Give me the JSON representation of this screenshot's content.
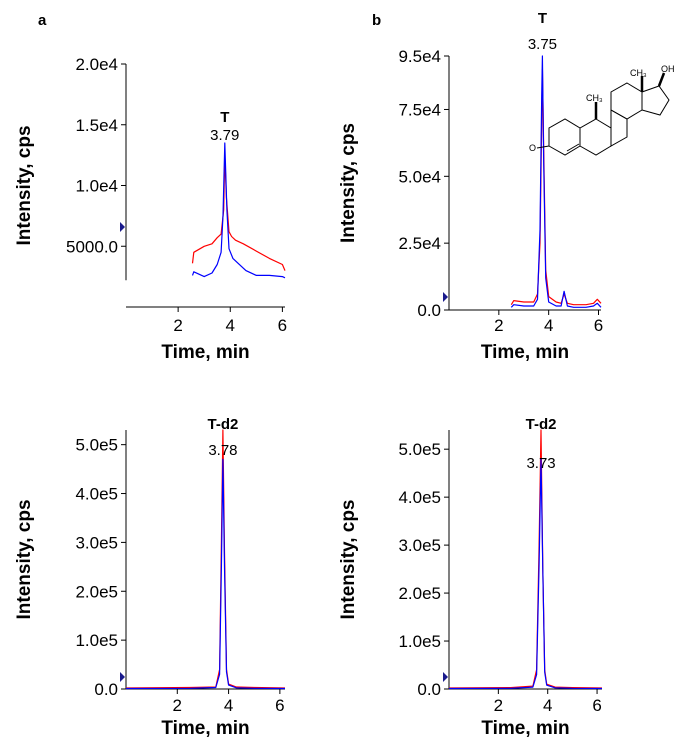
{
  "panel_letters": {
    "a": "a",
    "b": "b"
  },
  "structure": {
    "methyl_label_1": "CH₃",
    "methyl_label_2": "CH₃",
    "hydroxyl_label": "OH",
    "ketone_label": "O"
  },
  "chart_data": [
    {
      "id": "a-top",
      "type": "line",
      "panel": "a",
      "xlabel": "Time, min",
      "ylabel": "Intensity, cps",
      "xlim": [
        0,
        6.1
      ],
      "ylim": [
        0,
        20000
      ],
      "xticks": [
        2,
        4,
        6
      ],
      "xtick_labels": [
        "2",
        "4",
        "6"
      ],
      "yticks": [
        5000,
        10000,
        15000,
        20000
      ],
      "ytick_labels": [
        "5000.0",
        "1.0e4",
        "1.5e4",
        "2.0e4"
      ],
      "y_axis_start": 2200,
      "peak": {
        "name": "T",
        "rt": "3.79",
        "x": 3.79,
        "y": 13500
      },
      "colors": {
        "series1": "#ff0000",
        "series2": "#0000ff"
      },
      "series": [
        {
          "color": "#ff0000",
          "x": [
            2.55,
            2.6,
            3.0,
            3.3,
            3.5,
            3.65,
            3.75,
            3.79,
            3.85,
            3.95,
            4.05,
            4.2,
            4.5,
            5.0,
            5.5,
            6.0,
            6.1
          ],
          "y": [
            3600,
            4500,
            5000,
            5200,
            5700,
            6000,
            8000,
            12500,
            9000,
            6200,
            5800,
            5500,
            5200,
            4600,
            4000,
            3500,
            3000
          ]
        },
        {
          "color": "#0000ff",
          "x": [
            2.55,
            2.6,
            3.0,
            3.3,
            3.5,
            3.65,
            3.72,
            3.79,
            3.87,
            3.95,
            4.1,
            4.3,
            4.6,
            5.0,
            5.5,
            6.0,
            6.1
          ],
          "y": [
            2600,
            2900,
            2500,
            2800,
            3500,
            4500,
            7500,
            13500,
            8000,
            4800,
            4000,
            3600,
            3000,
            2600,
            2600,
            2500,
            2400
          ]
        }
      ]
    },
    {
      "id": "b-top",
      "type": "line",
      "panel": "b",
      "xlabel": "Time, min",
      "ylabel": "Intensity, cps",
      "xlim": [
        0,
        6.1
      ],
      "ylim": [
        0,
        95000
      ],
      "xticks": [
        2,
        4,
        6
      ],
      "xtick_labels": [
        "2",
        "4",
        "6"
      ],
      "yticks": [
        0,
        25000,
        50000,
        75000,
        95000
      ],
      "ytick_labels": [
        "0.0",
        "2.5e4",
        "5.0e4",
        "7.5e4",
        "9.5e4"
      ],
      "peak": {
        "name": "T",
        "rt": "3.75",
        "x": 3.75,
        "y": 95000
      },
      "colors": {
        "series1": "#ff0000",
        "series2": "#0000ff"
      },
      "series": [
        {
          "color": "#ff0000",
          "x": [
            2.5,
            2.6,
            3.0,
            3.4,
            3.55,
            3.65,
            3.72,
            3.75,
            3.8,
            3.88,
            4.0,
            4.3,
            4.5,
            4.62,
            4.75,
            5.0,
            5.5,
            5.8,
            5.95,
            6.1
          ],
          "y": [
            2000,
            3500,
            3000,
            3000,
            6000,
            25000,
            70000,
            90000,
            60000,
            15000,
            5000,
            3000,
            2500,
            6000,
            2500,
            2000,
            2000,
            2500,
            4000,
            2500
          ]
        },
        {
          "color": "#0000ff",
          "x": [
            2.5,
            2.6,
            3.0,
            3.4,
            3.55,
            3.65,
            3.72,
            3.75,
            3.8,
            3.88,
            4.0,
            4.3,
            4.5,
            4.62,
            4.75,
            5.0,
            5.5,
            5.8,
            5.95,
            6.1
          ],
          "y": [
            1000,
            2000,
            1500,
            1500,
            4000,
            30000,
            80000,
            95000,
            55000,
            12000,
            3000,
            1500,
            1500,
            7000,
            1500,
            1000,
            1000,
            1500,
            2500,
            1000
          ]
        }
      ]
    },
    {
      "id": "a-bottom",
      "type": "line",
      "panel": "a",
      "xlabel": "Time, min",
      "ylabel": "Intensity, cps",
      "xlim": [
        0,
        6.2
      ],
      "ylim": [
        0,
        530000
      ],
      "xticks": [
        2,
        4,
        6
      ],
      "xtick_labels": [
        "2",
        "4",
        "6"
      ],
      "yticks": [
        0,
        100000,
        200000,
        300000,
        400000,
        500000
      ],
      "ytick_labels": [
        "0.0",
        "1.0e5",
        "2.0e5",
        "3.0e5",
        "4.0e5",
        "5.0e5"
      ],
      "peak": {
        "name": "T-d2",
        "rt": "3.78",
        "x": 3.78,
        "y": 530000
      },
      "colors": {
        "series1": "#ff0000",
        "series2": "#0000ff"
      },
      "series": [
        {
          "color": "#ff0000",
          "x": [
            0.0,
            2.5,
            3.5,
            3.65,
            3.72,
            3.78,
            3.84,
            3.92,
            4.0,
            4.3,
            5.0,
            6.2
          ],
          "y": [
            2000,
            3000,
            4000,
            40000,
            300000,
            530000,
            280000,
            40000,
            10000,
            4000,
            3000,
            2000
          ]
        },
        {
          "color": "#0000ff",
          "x": [
            0.0,
            2.5,
            3.5,
            3.65,
            3.72,
            3.78,
            3.84,
            3.92,
            4.0,
            4.3,
            5.0,
            6.2
          ],
          "y": [
            1000,
            1500,
            3000,
            30000,
            250000,
            470000,
            250000,
            35000,
            8000,
            2500,
            1500,
            1000
          ]
        }
      ]
    },
    {
      "id": "b-bottom",
      "type": "line",
      "panel": "b",
      "xlabel": "Time, min",
      "ylabel": "Intensity, cps",
      "xlim": [
        0,
        6.2
      ],
      "ylim": [
        0,
        540000
      ],
      "xticks": [
        2,
        4,
        6
      ],
      "xtick_labels": [
        "2",
        "4",
        "6"
      ],
      "yticks": [
        0,
        100000,
        200000,
        300000,
        400000,
        500000
      ],
      "ytick_labels": [
        "0.0",
        "1.0e5",
        "2.0e5",
        "3.0e5",
        "4.0e5",
        "5.0e5"
      ],
      "peak": {
        "name": "T-d2",
        "rt": "3.73",
        "x": 3.73,
        "y": 540000
      },
      "colors": {
        "series1": "#ff0000",
        "series2": "#0000ff"
      },
      "series": [
        {
          "color": "#ff0000",
          "x": [
            0.0,
            2.5,
            3.4,
            3.55,
            3.65,
            3.73,
            3.8,
            3.88,
            3.96,
            4.3,
            5.0,
            6.2
          ],
          "y": [
            2000,
            3000,
            6000,
            40000,
            300000,
            540000,
            250000,
            40000,
            10000,
            4000,
            3000,
            2000
          ]
        },
        {
          "color": "#0000ff",
          "x": [
            0.0,
            2.5,
            3.4,
            3.55,
            3.65,
            3.73,
            3.8,
            3.88,
            3.96,
            4.3,
            5.0,
            6.2
          ],
          "y": [
            1000,
            1500,
            4000,
            30000,
            260000,
            480000,
            250000,
            35000,
            8000,
            2500,
            1500,
            1000
          ]
        }
      ]
    }
  ]
}
